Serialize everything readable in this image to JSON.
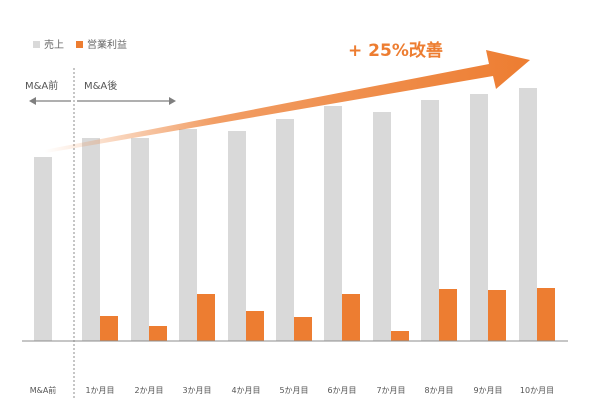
{
  "colors": {
    "sales": "#d9d9d9",
    "profit": "#ed7d31",
    "axis": "#8c8c8c",
    "arrow_gray": "#7f7f7f"
  },
  "chart_data": {
    "type": "bar",
    "title": "",
    "xlabel": "",
    "ylabel": "",
    "categories": [
      "M&A前",
      "1か月目",
      "2か月目",
      "3か月目",
      "4か月目",
      "5か月目",
      "6か月目",
      "7か月目",
      "8か月目",
      "9か月目",
      "10か月目"
    ],
    "series": [
      {
        "name": "売上",
        "values": [
          184,
          203,
          203,
          212,
          210,
          222,
          235,
          229,
          241,
          247,
          253
        ]
      },
      {
        "name": "営業利益",
        "values": [
          null,
          25,
          15,
          47,
          30,
          24,
          47,
          10,
          52,
          51,
          53
        ]
      }
    ],
    "ylim": [
      0,
      300
    ],
    "grid": false,
    "legend": "top-left",
    "annotations": {
      "trend_label": "+ 25%改善",
      "before_label": "M&A前",
      "after_label": "M&A後"
    }
  }
}
